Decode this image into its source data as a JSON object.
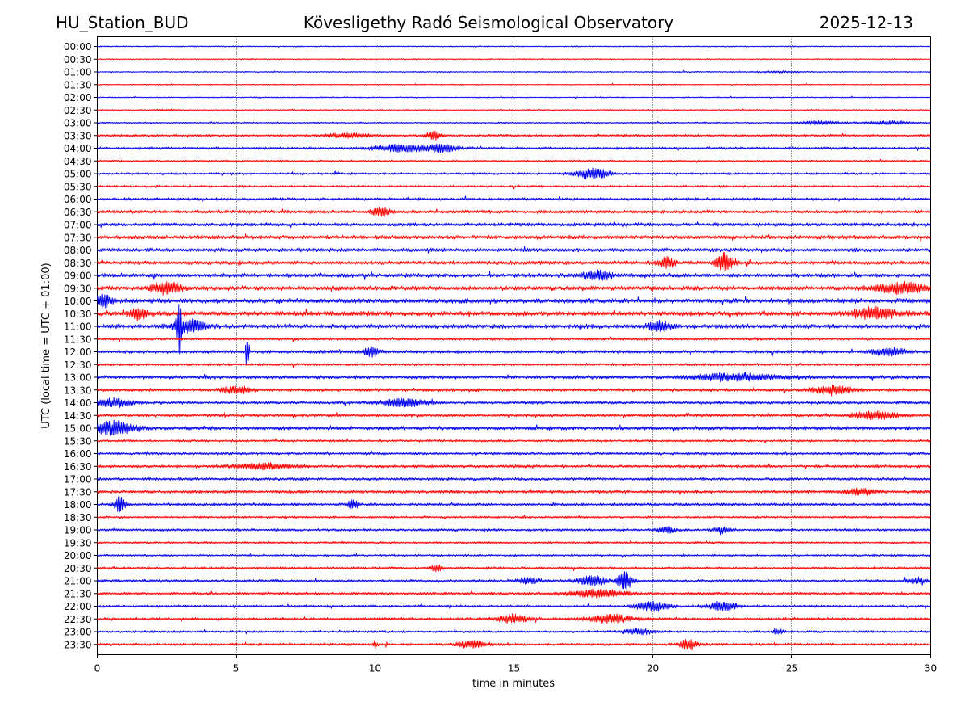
{
  "header": {
    "station": "HU_Station_BUD",
    "observatory": "Kövesligethy Radó Seismological Observatory",
    "date": "2025-12-13"
  },
  "colors": {
    "trace_a": "#0000ee",
    "trace_b": "#ff0000",
    "grid": "#000000"
  },
  "chart_data": {
    "type": "helicorder",
    "title": "Kövesligethy Radó Seismological Observatory",
    "xlabel": "time in minutes",
    "ylabel": "UTC (local time = UTC + 01:00)",
    "xlim": [
      0,
      30
    ],
    "xticks": [
      0,
      5,
      10,
      15,
      20,
      25,
      30
    ],
    "vertical_grid": "dotted",
    "rows": [
      {
        "label": "00:00",
        "base": 0.8,
        "events": []
      },
      {
        "label": "00:30",
        "base": 0.8,
        "events": []
      },
      {
        "label": "01:00",
        "base": 0.8,
        "events": [
          [
            24.5,
            0.8,
            1.0
          ]
        ]
      },
      {
        "label": "01:30",
        "base": 0.8,
        "events": []
      },
      {
        "label": "02:00",
        "base": 0.8,
        "events": []
      },
      {
        "label": "02:30",
        "base": 0.9,
        "events": [
          [
            2.5,
            0.4,
            1.0
          ]
        ]
      },
      {
        "label": "03:00",
        "base": 1.0,
        "events": [
          [
            26,
            0.8,
            2.0
          ],
          [
            28.5,
            0.8,
            2.0
          ]
        ]
      },
      {
        "label": "03:30",
        "base": 1.6,
        "events": [
          [
            12.1,
            0.3,
            3.0
          ],
          [
            9,
            0.8,
            1.5
          ]
        ]
      },
      {
        "label": "04:00",
        "base": 1.8,
        "events": [
          [
            11,
            1.0,
            2.5
          ],
          [
            12.5,
            0.5,
            2.5
          ]
        ]
      },
      {
        "label": "04:30",
        "base": 1.3,
        "events": []
      },
      {
        "label": "05:00",
        "base": 1.6,
        "events": [
          [
            17.8,
            0.6,
            4.0
          ]
        ]
      },
      {
        "label": "05:30",
        "base": 1.6,
        "events": []
      },
      {
        "label": "06:00",
        "base": 2.0,
        "events": []
      },
      {
        "label": "06:30",
        "base": 2.3,
        "events": [
          [
            10.2,
            0.3,
            2.5
          ]
        ]
      },
      {
        "label": "07:00",
        "base": 2.5,
        "events": []
      },
      {
        "label": "07:30",
        "base": 2.7,
        "events": []
      },
      {
        "label": "08:00",
        "base": 2.7,
        "events": []
      },
      {
        "label": "08:30",
        "base": 2.6,
        "events": [
          [
            22.6,
            0.3,
            4.5
          ],
          [
            20.5,
            0.3,
            2.5
          ]
        ]
      },
      {
        "label": "09:00",
        "base": 2.8,
        "events": [
          [
            18,
            0.5,
            2.0
          ]
        ]
      },
      {
        "label": "09:30",
        "base": 3.0,
        "events": [
          [
            2.5,
            0.5,
            2.5
          ],
          [
            29,
            1.0,
            2.0
          ]
        ]
      },
      {
        "label": "10:00",
        "base": 3.2,
        "events": [
          [
            0.2,
            0.3,
            2.5
          ]
        ]
      },
      {
        "label": "10:30",
        "base": 3.2,
        "events": [
          [
            1.5,
            0.3,
            2.5
          ],
          [
            28,
            0.8,
            2.0
          ]
        ]
      },
      {
        "label": "11:00",
        "base": 3.0,
        "events": [
          [
            2.95,
            0.08,
            10.0
          ],
          [
            3.3,
            0.6,
            2.5
          ],
          [
            20.2,
            0.4,
            2.0
          ]
        ]
      },
      {
        "label": "11:30",
        "base": 1.8,
        "events": []
      },
      {
        "label": "12:00",
        "base": 2.2,
        "events": [
          [
            5.4,
            0.06,
            8.0
          ],
          [
            9.9,
            0.3,
            2.5
          ],
          [
            28.5,
            0.6,
            2.0
          ]
        ]
      },
      {
        "label": "12:30",
        "base": 1.8,
        "events": []
      },
      {
        "label": "13:00",
        "base": 2.4,
        "events": [
          [
            23,
            1.5,
            1.8
          ]
        ]
      },
      {
        "label": "13:30",
        "base": 2.2,
        "events": [
          [
            5,
            0.5,
            2.0
          ],
          [
            26.5,
            0.8,
            2.0
          ]
        ]
      },
      {
        "label": "14:00",
        "base": 2.0,
        "events": [
          [
            0.6,
            0.6,
            2.5
          ],
          [
            11,
            0.8,
            2.2
          ]
        ]
      },
      {
        "label": "14:30",
        "base": 2.0,
        "events": [
          [
            28,
            0.8,
            2.2
          ]
        ]
      },
      {
        "label": "15:00",
        "base": 2.6,
        "events": [
          [
            0.5,
            0.8,
            3.0
          ]
        ]
      },
      {
        "label": "15:30",
        "base": 1.6,
        "events": []
      },
      {
        "label": "16:00",
        "base": 1.8,
        "events": []
      },
      {
        "label": "16:30",
        "base": 2.0,
        "events": [
          [
            6,
            1.0,
            1.6
          ]
        ]
      },
      {
        "label": "17:00",
        "base": 2.0,
        "events": []
      },
      {
        "label": "17:30",
        "base": 2.2,
        "events": [
          [
            27.5,
            0.5,
            2.0
          ]
        ]
      },
      {
        "label": "18:00",
        "base": 2.0,
        "events": [
          [
            0.8,
            0.2,
            4.5
          ],
          [
            9.2,
            0.2,
            2.5
          ]
        ]
      },
      {
        "label": "18:30",
        "base": 1.5,
        "events": []
      },
      {
        "label": "19:00",
        "base": 1.8,
        "events": [
          [
            20.5,
            0.3,
            2.0
          ],
          [
            22.5,
            0.3,
            1.8
          ]
        ]
      },
      {
        "label": "19:30",
        "base": 1.5,
        "events": []
      },
      {
        "label": "20:00",
        "base": 1.4,
        "events": []
      },
      {
        "label": "20:30",
        "base": 1.7,
        "events": [
          [
            12.2,
            0.2,
            2.5
          ]
        ]
      },
      {
        "label": "21:00",
        "base": 1.8,
        "events": [
          [
            19.0,
            0.25,
            6.5
          ],
          [
            17.8,
            0.5,
            3.5
          ],
          [
            15.5,
            0.4,
            2.0
          ],
          [
            29.5,
            0.3,
            2.0
          ]
        ]
      },
      {
        "label": "21:30",
        "base": 1.8,
        "events": [
          [
            18,
            1.0,
            2.5
          ]
        ]
      },
      {
        "label": "22:00",
        "base": 1.8,
        "events": [
          [
            20,
            0.6,
            3.0
          ],
          [
            22.5,
            0.5,
            3.0
          ]
        ]
      },
      {
        "label": "22:30",
        "base": 2.0,
        "events": [
          [
            15,
            0.5,
            2.5
          ],
          [
            18.5,
            0.8,
            2.2
          ]
        ]
      },
      {
        "label": "23:00",
        "base": 1.6,
        "events": [
          [
            19.5,
            0.6,
            2.0
          ],
          [
            24.5,
            0.2,
            2.0
          ]
        ]
      },
      {
        "label": "23:30",
        "base": 1.8,
        "events": [
          [
            21.3,
            0.3,
            3.5
          ],
          [
            13.5,
            0.5,
            2.5
          ],
          [
            10,
            0.1,
            2.0
          ]
        ]
      }
    ]
  }
}
